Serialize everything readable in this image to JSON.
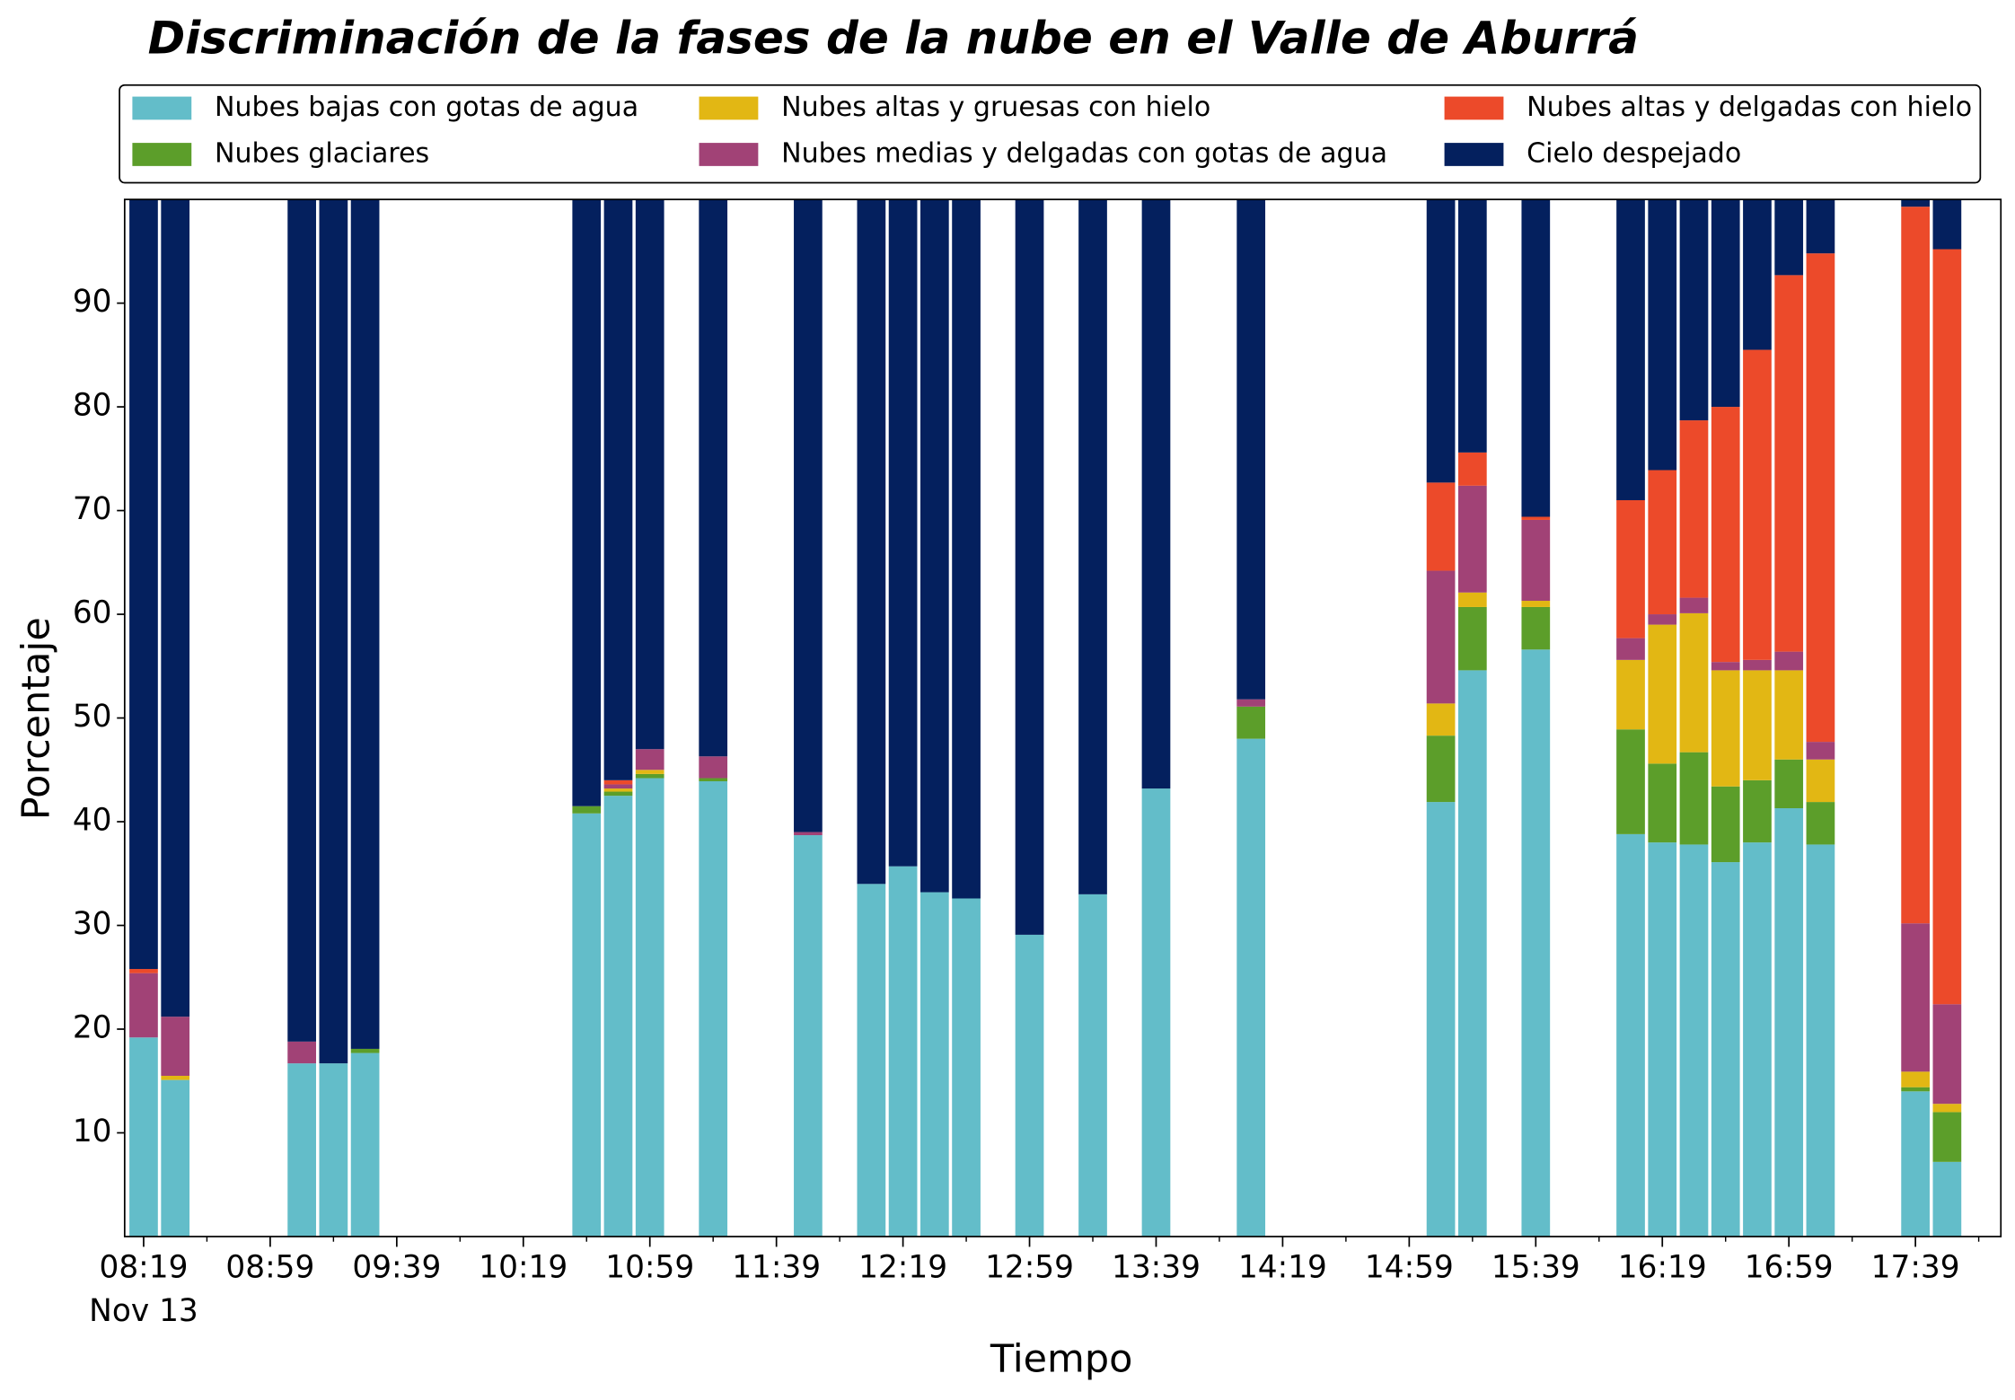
{
  "chart_data": {
    "type": "stacked_bar",
    "title": "Discriminación de la fases de la nube en el Valle de Aburrá",
    "xlabel": "Tiempo",
    "ylabel": "Porcentaje",
    "date_label": "Nov 13",
    "x": [
      "08:19",
      "08:29",
      "09:09",
      "09:19",
      "09:29",
      "10:39",
      "10:49",
      "10:59",
      "11:19",
      "11:49",
      "12:09",
      "12:19",
      "12:29",
      "12:39",
      "12:59",
      "13:19",
      "13:39",
      "14:09",
      "15:09",
      "15:19",
      "15:39",
      "16:09",
      "16:19",
      "16:29",
      "16:39",
      "16:49",
      "16:59",
      "17:09",
      "17:39",
      "17:49"
    ],
    "xlim": [
      "08:13",
      "18:06"
    ],
    "xticks": [
      "08:19",
      "08:59",
      "09:39",
      "10:19",
      "10:59",
      "11:39",
      "12:19",
      "12:59",
      "13:39",
      "14:19",
      "14:59",
      "15:39",
      "16:19",
      "16:59",
      "17:39"
    ],
    "ylim": [
      0,
      100
    ],
    "yticks": [
      10,
      20,
      30,
      40,
      50,
      60,
      70,
      80,
      90
    ],
    "legend": "top-outside",
    "series": [
      {
        "name": "Nubes bajas con gotas de agua",
        "color": "#63bdc9",
        "values": [
          19.2,
          15.1,
          16.7,
          16.7,
          17.7,
          40.8,
          42.5,
          44.2,
          43.9,
          38.7,
          34.0,
          35.7,
          33.2,
          32.6,
          29.1,
          33.0,
          43.2,
          48.0,
          41.9,
          54.6,
          56.6,
          38.8,
          38.0,
          37.8,
          36.1,
          38.0,
          41.3,
          37.8,
          14.0,
          7.2
        ]
      },
      {
        "name": "Nubes glaciares",
        "color": "#5c9e2a",
        "values": [
          0,
          0,
          0,
          0,
          0.4,
          0.7,
          0.4,
          0.4,
          0.3,
          0,
          0,
          0,
          0,
          0,
          0,
          0,
          0,
          3.1,
          6.4,
          6.1,
          4.1,
          10.1,
          7.6,
          8.9,
          7.3,
          6.0,
          4.7,
          4.1,
          0.4,
          4.8
        ]
      },
      {
        "name": "Nubes altas y gruesas con hielo",
        "color": "#e2b714",
        "values": [
          0,
          0.4,
          0,
          0,
          0,
          0,
          0.3,
          0.4,
          0,
          0,
          0,
          0,
          0,
          0,
          0,
          0,
          0,
          0,
          3.1,
          1.4,
          0.6,
          6.7,
          13.4,
          13.4,
          11.2,
          10.6,
          8.6,
          4.1,
          1.5,
          0.8
        ]
      },
      {
        "name": "Nubes medias y delgadas con gotas de agua",
        "color": "#a14276",
        "values": [
          6.2,
          5.7,
          2.1,
          0,
          0,
          0,
          0.4,
          2.0,
          2.1,
          0.3,
          0,
          0,
          0,
          0,
          0,
          0,
          0,
          0.7,
          12.8,
          10.3,
          7.8,
          2.1,
          1.0,
          1.5,
          0.8,
          1.0,
          1.8,
          1.7,
          14.3,
          9.6
        ]
      },
      {
        "name": "Nubes altas y delgadas con hielo",
        "color": "#ec4a2a",
        "values": [
          0.4,
          0,
          0,
          0,
          0,
          0,
          0.4,
          0,
          0,
          0,
          0,
          0,
          0,
          0,
          0,
          0,
          0,
          0,
          8.5,
          3.2,
          0.3,
          13.3,
          13.9,
          17.1,
          24.6,
          29.9,
          36.3,
          47.1,
          69.1,
          72.8
        ]
      },
      {
        "name": "Cielo despejado",
        "color": "#04205e",
        "values": [
          74.2,
          78.8,
          81.2,
          83.3,
          81.9,
          58.5,
          56.0,
          53.0,
          53.7,
          61.0,
          66.0,
          64.3,
          66.8,
          67.4,
          70.9,
          67.0,
          56.8,
          48.2,
          27.3,
          24.4,
          30.6,
          29.0,
          26.1,
          21.3,
          20.0,
          14.5,
          7.3,
          5.2,
          0.7,
          4.8
        ]
      }
    ]
  }
}
